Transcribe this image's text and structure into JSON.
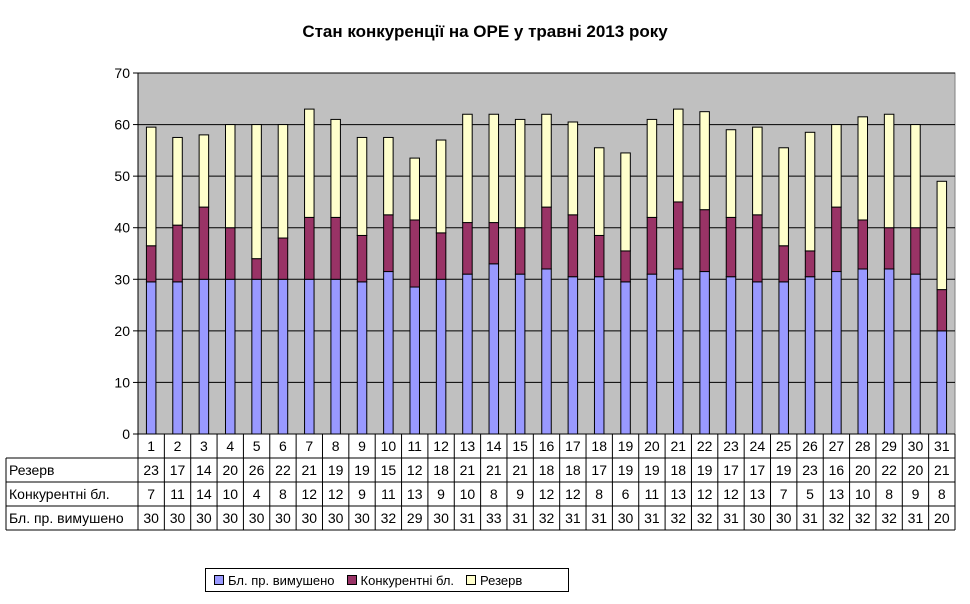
{
  "chart_data": {
    "type": "bar",
    "stacked": true,
    "title": "Стан конкуренції на ОРЕ  у травні 2013 року",
    "categories": [
      "1",
      "2",
      "3",
      "4",
      "5",
      "6",
      "7",
      "8",
      "9",
      "10",
      "11",
      "12",
      "13",
      "14",
      "15",
      "16",
      "17",
      "18",
      "19",
      "20",
      "21",
      "22",
      "23",
      "24",
      "25",
      "26",
      "27",
      "28",
      "29",
      "30",
      "31"
    ],
    "ylim": [
      0,
      70
    ],
    "yticks": [
      0,
      10,
      20,
      30,
      40,
      50,
      60,
      70
    ],
    "grid": true,
    "legend_position": "bottom",
    "series": [
      {
        "name": "Бл. пр. вимушено",
        "color": "#9999ff",
        "values": [
          29.5,
          29.5,
          30,
          30,
          30,
          30,
          30,
          30,
          29.5,
          31.5,
          28.5,
          30,
          31,
          33,
          31,
          32,
          30.5,
          30.5,
          29.5,
          31,
          32,
          31.5,
          30.5,
          29.5,
          29.5,
          30.5,
          31.5,
          32,
          32,
          31,
          20
        ]
      },
      {
        "name": "Конкурентні бл.",
        "color": "#993366",
        "values": [
          7,
          11,
          14,
          10,
          4,
          8,
          12,
          12,
          9,
          11,
          13,
          9,
          10,
          8,
          9,
          12,
          12,
          8,
          6,
          11,
          13,
          12,
          11.5,
          13,
          7,
          5,
          12.5,
          9.5,
          8,
          9,
          8
        ]
      },
      {
        "name": "Резерв",
        "color": "#ffffcc",
        "values": [
          23,
          17,
          14,
          20,
          26,
          22,
          21,
          19,
          19,
          15,
          12,
          18,
          21,
          21,
          21,
          18,
          18,
          17,
          19,
          19,
          18,
          19,
          17,
          17,
          19,
          23,
          16,
          20,
          22,
          20,
          21
        ]
      }
    ],
    "table": {
      "rows": [
        {
          "label": "Резерв",
          "values": [
            "23",
            "17",
            "14",
            "20",
            "26",
            "22",
            "21",
            "19",
            "19",
            "15",
            "12",
            "18",
            "21",
            "21",
            "21",
            "18",
            "18",
            "17",
            "19",
            "19",
            "18",
            "19",
            "17",
            "17",
            "19",
            "23",
            "16",
            "20",
            "22",
            "20",
            "21"
          ]
        },
        {
          "label": "Конкурентні бл.",
          "values": [
            "7",
            "11",
            "14",
            "10",
            "4",
            "8",
            "12",
            "12",
            "9",
            "11",
            "13",
            "9",
            "10",
            "8",
            "9",
            "12",
            "12",
            "8",
            "6",
            "11",
            "13",
            "12",
            "12",
            "13",
            "7",
            "5",
            "13",
            "10",
            "8",
            "9",
            "8"
          ]
        },
        {
          "label": "Бл. пр. вимушено",
          "values": [
            "30",
            "30",
            "30",
            "30",
            "30",
            "30",
            "30",
            "30",
            "30",
            "32",
            "29",
            "30",
            "31",
            "33",
            "31",
            "32",
            "31",
            "31",
            "30",
            "31",
            "32",
            "32",
            "31",
            "30",
            "30",
            "31",
            "32",
            "32",
            "32",
            "31",
            "20"
          ]
        }
      ]
    },
    "colors": {
      "plot_background": "#c0c0c0",
      "gridline": "#000000"
    }
  }
}
